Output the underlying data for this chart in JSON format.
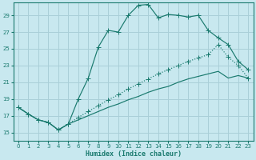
{
  "xlabel": "Humidex (Indice chaleur)",
  "xlim": [
    -0.5,
    23.5
  ],
  "ylim": [
    14.0,
    30.5
  ],
  "yticks": [
    15,
    17,
    19,
    21,
    23,
    25,
    27,
    29
  ],
  "xticks": [
    0,
    1,
    2,
    3,
    4,
    5,
    6,
    7,
    8,
    9,
    10,
    11,
    12,
    13,
    14,
    15,
    16,
    17,
    18,
    19,
    20,
    21,
    22,
    23
  ],
  "bg_color": "#c8e8ef",
  "grid_color": "#aacfd8",
  "line_color": "#1a7a6e",
  "line1_x": [
    0,
    1,
    2,
    3,
    4,
    5,
    6,
    7,
    8,
    9,
    10,
    11,
    12,
    13,
    14,
    15,
    16,
    17,
    18,
    19,
    20,
    21,
    22,
    23
  ],
  "line1_y": [
    18.0,
    17.2,
    16.5,
    16.2,
    15.3,
    16.0,
    19.0,
    21.5,
    25.2,
    27.2,
    27.0,
    29.0,
    30.2,
    30.3,
    28.7,
    29.1,
    29.0,
    28.8,
    29.0,
    27.2,
    26.3,
    25.5,
    23.5,
    22.5
  ],
  "line2_x": [
    0,
    1,
    2,
    3,
    4,
    5,
    6,
    7,
    8,
    9,
    10,
    11,
    12,
    13,
    14,
    15,
    16,
    17,
    18,
    19,
    20,
    21,
    22,
    23
  ],
  "line2_y": [
    18.0,
    17.2,
    16.5,
    16.2,
    15.3,
    16.0,
    16.8,
    17.5,
    18.2,
    18.9,
    19.5,
    20.2,
    20.8,
    21.4,
    22.0,
    22.5,
    23.0,
    23.5,
    23.9,
    24.3,
    25.5,
    24.0,
    23.0,
    21.5
  ],
  "line3_x": [
    0,
    1,
    2,
    3,
    4,
    5,
    6,
    7,
    8,
    9,
    10,
    11,
    12,
    13,
    14,
    15,
    16,
    17,
    18,
    19,
    20,
    21,
    22,
    23
  ],
  "line3_y": [
    18.0,
    17.2,
    16.5,
    16.2,
    15.3,
    16.0,
    16.5,
    17.0,
    17.5,
    18.0,
    18.4,
    18.9,
    19.3,
    19.8,
    20.2,
    20.5,
    21.0,
    21.4,
    21.7,
    22.0,
    22.3,
    21.5,
    21.8,
    21.5
  ]
}
